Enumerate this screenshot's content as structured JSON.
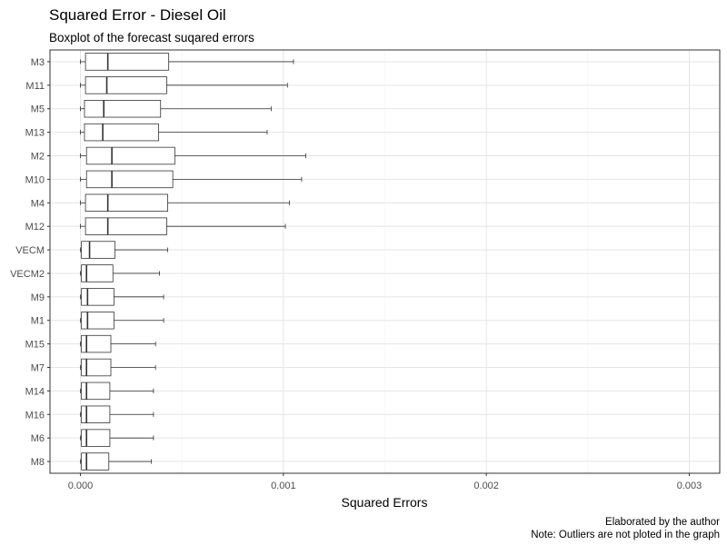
{
  "chart_data": {
    "type": "boxplot",
    "title": "Squared Error - Diesel Oil",
    "subtitle": "Boxplot of the forecast suqared errors",
    "xlabel": "Squared Errors",
    "ylabel": "",
    "xlim": [
      -0.00015,
      0.00315
    ],
    "x_ticks": [
      0,
      0.001,
      0.002,
      0.003
    ],
    "x_tick_labels": [
      "0.000",
      "0.001",
      "0.002",
      "0.003"
    ],
    "grid": true,
    "orientation": "horizontal",
    "categories": [
      "M3",
      "M11",
      "M5",
      "M13",
      "M2",
      "M10",
      "M4",
      "M12",
      "VECM",
      "VECM2",
      "M9",
      "M1",
      "M15",
      "M7",
      "M14",
      "M16",
      "M6",
      "M8"
    ],
    "boxes": [
      {
        "label": "M3",
        "min": 0.0,
        "q1": 2.5e-05,
        "median": 0.000135,
        "q3": 0.000435,
        "max": 0.00105
      },
      {
        "label": "M11",
        "min": 0.0,
        "q1": 2.5e-05,
        "median": 0.00013,
        "q3": 0.000425,
        "max": 0.00102
      },
      {
        "label": "M5",
        "min": 0.0,
        "q1": 2e-05,
        "median": 0.000115,
        "q3": 0.000395,
        "max": 0.00094
      },
      {
        "label": "M13",
        "min": 0.0,
        "q1": 2e-05,
        "median": 0.00011,
        "q3": 0.000385,
        "max": 0.00092
      },
      {
        "label": "M2",
        "min": 0.0,
        "q1": 3e-05,
        "median": 0.000155,
        "q3": 0.000465,
        "max": 0.00111
      },
      {
        "label": "M10",
        "min": 0.0,
        "q1": 3e-05,
        "median": 0.000155,
        "q3": 0.000455,
        "max": 0.00109
      },
      {
        "label": "M4",
        "min": 0.0,
        "q1": 2.5e-05,
        "median": 0.000135,
        "q3": 0.00043,
        "max": 0.00103
      },
      {
        "label": "M12",
        "min": 0.0,
        "q1": 2.5e-05,
        "median": 0.000135,
        "q3": 0.000425,
        "max": 0.00101
      },
      {
        "label": "VECM",
        "min": 0.0,
        "q1": 5e-06,
        "median": 4.5e-05,
        "q3": 0.00017,
        "max": 0.00043
      },
      {
        "label": "VECM2",
        "min": 0.0,
        "q1": 5e-06,
        "median": 3e-05,
        "q3": 0.00016,
        "max": 0.00039
      },
      {
        "label": "M9",
        "min": 0.0,
        "q1": 5e-06,
        "median": 3.5e-05,
        "q3": 0.000165,
        "max": 0.00041
      },
      {
        "label": "M1",
        "min": 0.0,
        "q1": 5e-06,
        "median": 3.5e-05,
        "q3": 0.000165,
        "max": 0.00041
      },
      {
        "label": "M15",
        "min": 0.0,
        "q1": 5e-06,
        "median": 3e-05,
        "q3": 0.00015,
        "max": 0.00037
      },
      {
        "label": "M7",
        "min": 0.0,
        "q1": 5e-06,
        "median": 3e-05,
        "q3": 0.00015,
        "max": 0.00037
      },
      {
        "label": "M14",
        "min": 0.0,
        "q1": 5e-06,
        "median": 3e-05,
        "q3": 0.000145,
        "max": 0.00036
      },
      {
        "label": "M16",
        "min": 0.0,
        "q1": 5e-06,
        "median": 3e-05,
        "q3": 0.000145,
        "max": 0.00036
      },
      {
        "label": "M6",
        "min": 0.0,
        "q1": 5e-06,
        "median": 3e-05,
        "q3": 0.000145,
        "max": 0.00036
      },
      {
        "label": "M8",
        "min": 0.0,
        "q1": 5e-06,
        "median": 3e-05,
        "q3": 0.00014,
        "max": 0.00035
      }
    ],
    "caption_lines": [
      "Elaborated by the author",
      "Note: Outliers are not ploted in the graph"
    ]
  },
  "colors": {
    "background": "#ffffff",
    "panel_border": "#333333",
    "grid_major": "#e5e5e5",
    "grid_minor": "#f2f2f2",
    "box_fill": "#ffffff",
    "box_stroke": "#333333",
    "tick_label": "#4d4d4d",
    "text": "#000000"
  }
}
